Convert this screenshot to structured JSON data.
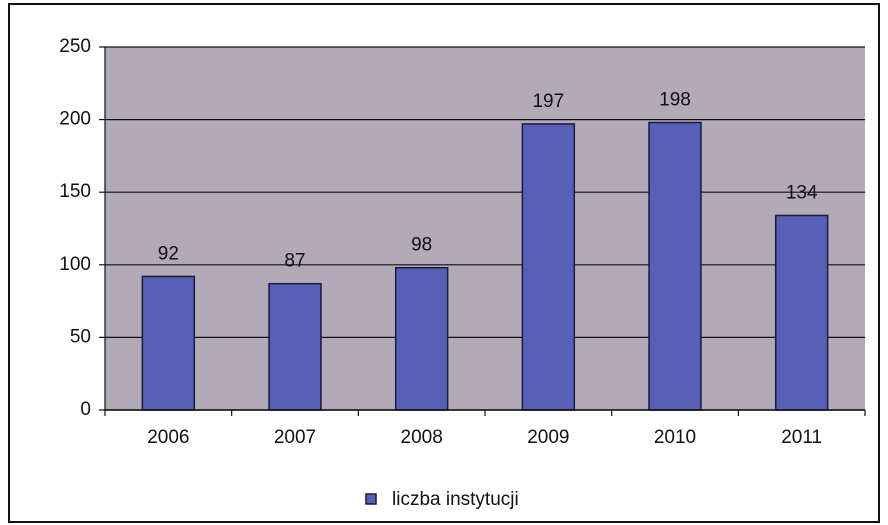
{
  "chart_data": {
    "type": "bar",
    "categories": [
      "2006",
      "2007",
      "2008",
      "2009",
      "2010",
      "2011"
    ],
    "series": [
      {
        "name": "liczba instytucji",
        "color": "#5560b6",
        "values": [
          92,
          87,
          98,
          197,
          198,
          134
        ]
      }
    ],
    "ylim": [
      0,
      250
    ],
    "yticks": [
      0,
      50,
      100,
      150,
      200,
      250
    ],
    "grid": true,
    "plot_background": "#b3aab8",
    "legend": "bottom"
  }
}
